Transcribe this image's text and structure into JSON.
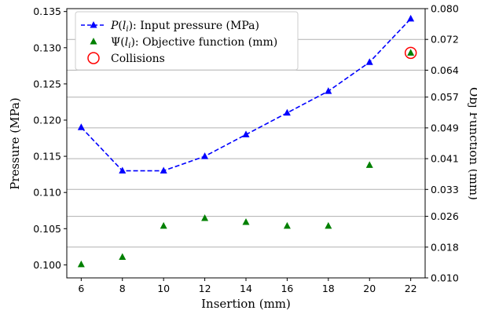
{
  "chart_data": {
    "type": "line",
    "xlabel": "Insertion (mm)",
    "ylabel_left": "Pressure (MPa)",
    "ylabel_right": "Obj Function (mm)",
    "xlim": [
      5.3,
      22.7
    ],
    "ylim_left": [
      0.0982,
      0.1354
    ],
    "ylim_right": [
      0.01,
      0.08
    ],
    "x_ticks": [
      6,
      8,
      10,
      12,
      14,
      16,
      18,
      20,
      22
    ],
    "y_left_ticks": [
      "0.100",
      "0.105",
      "0.110",
      "0.115",
      "0.120",
      "0.125",
      "0.130",
      "0.135"
    ],
    "y_right_ticks": [
      "0.010",
      "0.018",
      "0.026",
      "0.033",
      "0.041",
      "0.049",
      "0.057",
      "0.064",
      "0.072",
      "0.080"
    ],
    "grid": "horizontal, right axis",
    "legend_position": "top-left",
    "legend": [
      {
        "prefix": "P",
        "var": "l",
        "sub": "i",
        "suffix": "): Input pressure (MPa)"
      },
      {
        "prefix": "Ψ",
        "var": "l",
        "sub": "i",
        "suffix": "): Objective function (mm)"
      },
      {
        "plain": "Collisions"
      }
    ],
    "series": [
      {
        "axis": "left",
        "style": "dashed-line-triangle",
        "color": "#0000ff",
        "x": [
          6,
          8,
          10,
          12,
          14,
          16,
          18,
          20,
          22
        ],
        "values": [
          0.119,
          0.113,
          0.113,
          0.115,
          0.118,
          0.121,
          0.124,
          0.128,
          0.134
        ]
      },
      {
        "axis": "right",
        "style": "triangle-markers",
        "color": "#008000",
        "x": [
          6,
          8,
          10,
          12,
          14,
          16,
          18,
          20,
          22
        ],
        "values": [
          0.0135,
          0.0154,
          0.0235,
          0.0255,
          0.0245,
          0.0235,
          0.0235,
          0.0393,
          0.0685
        ]
      }
    ],
    "collisions": {
      "color": "#ff0000",
      "x": [
        22
      ],
      "values": [
        0.0685
      ]
    }
  }
}
